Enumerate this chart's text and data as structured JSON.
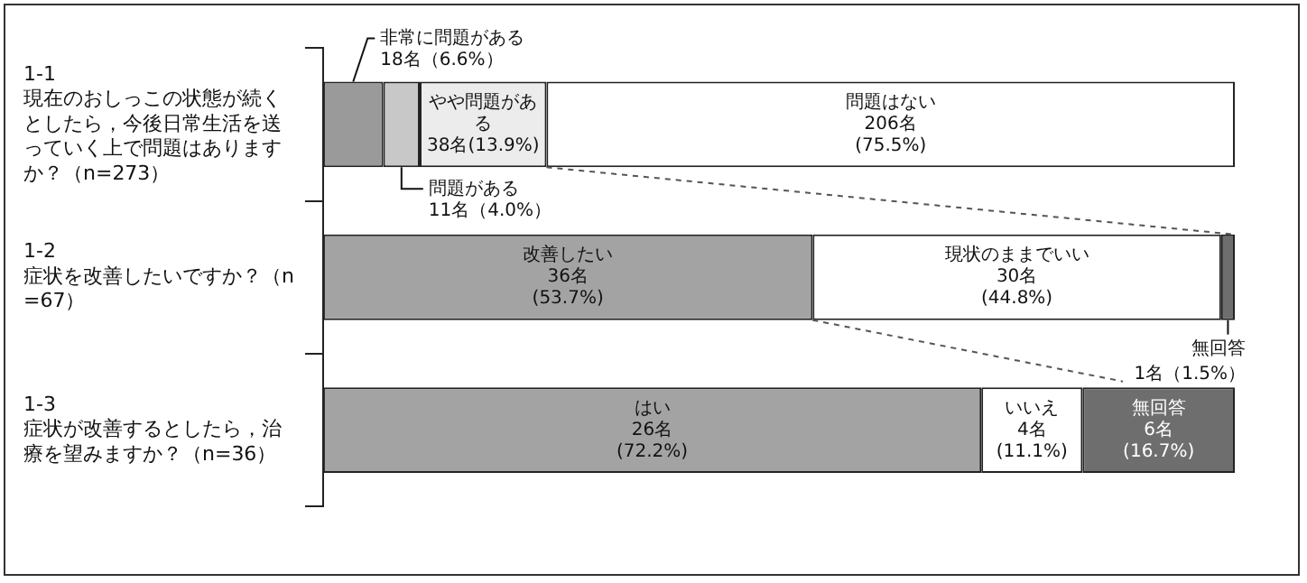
{
  "chart_data": {
    "type": "bar",
    "orientation": "horizontal",
    "stacked": true,
    "categories": [
      "1-1\n現在のおしっこの状態が続くとしたら，今後日常生活を送っていく上で問題はありますか？（n=273）",
      "1-2\n症状を改善したいですか？（n=67）",
      "1-3\n症状が改善するとしたら，治療を望みますか？（n=36）"
    ],
    "series": [
      {
        "colors": [
          "#9a9a9a",
          "#a3a3a3",
          "#a3a3a3"
        ],
        "values": [
          6.6,
          53.7,
          72.2
        ],
        "value_labels": [
          "非常に問題がある\n18名（6.6%）",
          "改善したい\n36名\n(53.7%)",
          "はい\n26名\n(72.2%)"
        ]
      },
      {
        "colors": [
          "#c8c8c8",
          "#ffffff",
          "#ffffff"
        ],
        "values": [
          4.0,
          44.8,
          11.1
        ],
        "value_labels": [
          "問題がある\n11名（4.0%）",
          "現状のままでいい\n30名\n(44.8%)",
          "いいえ\n4名\n(11.1%)"
        ]
      },
      {
        "colors": [
          "#ececec",
          "#6e6e6e",
          "#6e6e6e"
        ],
        "values": [
          13.9,
          1.5,
          16.7
        ],
        "value_labels": [
          "やや問題がある\n38名(13.9%)",
          "無回答\n1名（1.5%）",
          "無回答\n6名\n(16.7%)"
        ]
      },
      {
        "colors": [
          "#ffffff",
          "#ffffff",
          "#ffffff"
        ],
        "values": [
          75.5,
          null,
          null
        ],
        "value_labels": [
          "問題はない\n206名\n(75.5%)",
          null,
          null
        ]
      }
    ],
    "xlim": [
      0,
      100
    ],
    "tick_labels": "y",
    "grid": false,
    "legend": false
  }
}
